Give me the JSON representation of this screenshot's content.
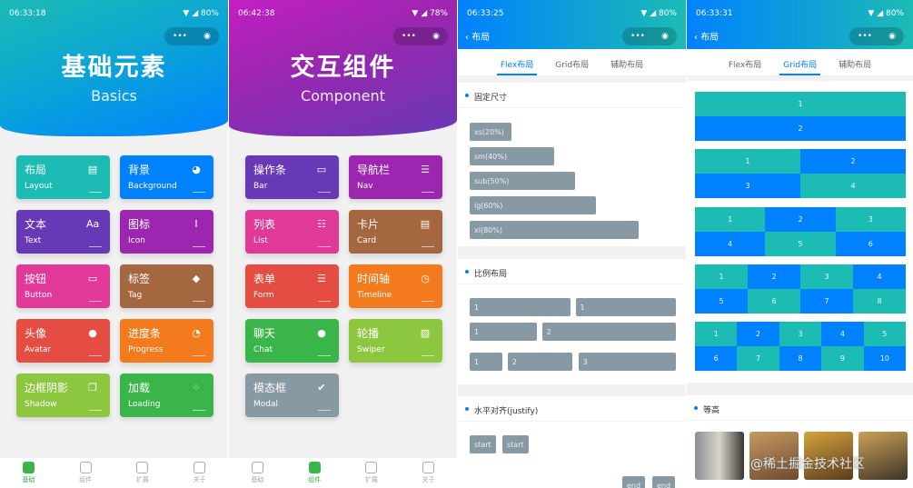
{
  "colors": {
    "teal": "#1cbbb4",
    "blue": "#0081ff",
    "green": "#39b54a"
  },
  "screens": [
    {
      "time": "06:33:18",
      "battery": "80%",
      "hero_title": "基础元素",
      "hero_subtitle": "Basics",
      "cards": [
        {
          "cn": "布局",
          "en": "Layout",
          "color": "#1cbbb4",
          "icon": "id-card-icon"
        },
        {
          "cn": "背景",
          "en": "Background",
          "color": "#0081ff",
          "icon": "palette-icon"
        },
        {
          "cn": "文本",
          "en": "Text",
          "color": "#6739b6",
          "icon": "text-icon"
        },
        {
          "cn": "图标",
          "en": "Icon",
          "color": "#9c26b0",
          "icon": "icon-i-icon"
        },
        {
          "cn": "按钮",
          "en": "Button",
          "color": "#e03997",
          "icon": "button-icon"
        },
        {
          "cn": "标签",
          "en": "Tag",
          "color": "#a5673f",
          "icon": "tag-icon"
        },
        {
          "cn": "头像",
          "en": "Avatar",
          "color": "#e54d42",
          "icon": "user-icon"
        },
        {
          "cn": "进度条",
          "en": "Progress",
          "color": "#f37b1d",
          "icon": "progress-icon"
        },
        {
          "cn": "边框阴影",
          "en": "Shadow",
          "color": "#8dc63f",
          "icon": "copy-icon"
        },
        {
          "cn": "加载",
          "en": "Loading",
          "color": "#39b54a",
          "icon": "loading-icon"
        }
      ],
      "active_tab": 0
    },
    {
      "time": "06:42:38",
      "battery": "78%",
      "hero_title": "交互组件",
      "hero_subtitle": "Component",
      "cards": [
        {
          "cn": "操作条",
          "en": "Bar",
          "color": "#6739b6",
          "icon": "card-icon"
        },
        {
          "cn": "导航栏",
          "en": "Nav",
          "color": "#9c26b0",
          "icon": "nav-icon"
        },
        {
          "cn": "列表",
          "en": "List",
          "color": "#e03997",
          "icon": "list-icon"
        },
        {
          "cn": "卡片",
          "en": "Card",
          "color": "#a5673f",
          "icon": "id-card-icon"
        },
        {
          "cn": "表单",
          "en": "Form",
          "color": "#e54d42",
          "icon": "form-icon"
        },
        {
          "cn": "时间轴",
          "en": "Timeline",
          "color": "#f37b1d",
          "icon": "clock-icon"
        },
        {
          "cn": "聊天",
          "en": "Chat",
          "color": "#39b54a",
          "icon": "chat-icon"
        },
        {
          "cn": "轮播",
          "en": "Swiper",
          "color": "#8dc63f",
          "icon": "album-icon"
        },
        {
          "cn": "模态框",
          "en": "Modal",
          "color": "#8799a3",
          "icon": "check-icon"
        }
      ],
      "active_tab": 1
    },
    {
      "time": "06:33:25",
      "battery": "80%"
    },
    {
      "time": "06:33:31",
      "battery": "80%"
    }
  ],
  "tabbar": [
    "基础",
    "组件",
    "扩展",
    "关于"
  ],
  "layout_page": {
    "back": "布局",
    "tabs": [
      "Flex布局",
      "Grid布局",
      "辅助布局"
    ]
  },
  "flex": {
    "fixed_title": "固定尺寸",
    "fixed": [
      {
        "label": "xs(20%)",
        "pct": 20
      },
      {
        "label": "sm(40%)",
        "pct": 40
      },
      {
        "label": "sub(50%)",
        "pct": 50
      },
      {
        "label": "lg(60%)",
        "pct": 60
      },
      {
        "label": "xl(80%)",
        "pct": 80
      }
    ],
    "ratio_title": "比例布局",
    "ratio_rows": [
      [
        "1",
        "1"
      ],
      [
        "1",
        "2"
      ],
      [
        "1",
        "2",
        "3"
      ]
    ],
    "justify_title": "水平对齐(justify)",
    "start": [
      "start",
      "start"
    ],
    "end": [
      "end",
      "end"
    ]
  },
  "grid": {
    "blocks": [
      {
        "cols": 1,
        "cells": [
          "1",
          "2"
        ]
      },
      {
        "cols": 2,
        "cells": [
          "1",
          "2",
          "3",
          "4"
        ]
      },
      {
        "cols": 3,
        "cells": [
          "1",
          "2",
          "3",
          "4",
          "5",
          "6"
        ]
      },
      {
        "cols": 4,
        "cells": [
          "1",
          "2",
          "3",
          "4",
          "5",
          "6",
          "7",
          "8"
        ]
      },
      {
        "cols": 5,
        "cells": [
          "1",
          "2",
          "3",
          "4",
          "5",
          "6",
          "7",
          "8",
          "9",
          "10"
        ]
      }
    ],
    "equal_title": "等高"
  },
  "watermark": "@稀土掘金技术社区"
}
